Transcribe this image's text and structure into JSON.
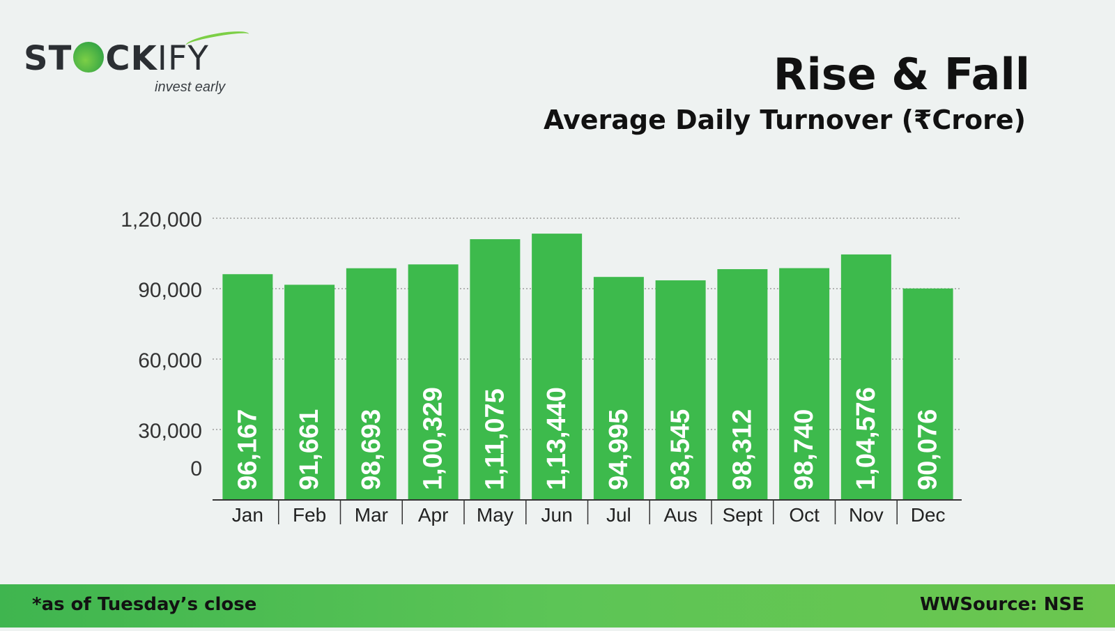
{
  "brand": {
    "name_part1": "ST",
    "name_part2": "CK",
    "name_part3": "IFY",
    "tagline": "invest early",
    "accent_color": "#7ccf46"
  },
  "header": {
    "title": "Rise & Fall",
    "subtitle": "Average Daily Turnover (₹Crore)"
  },
  "footer": {
    "note": "*as of Tuesday’s close",
    "source": "WWSource: NSE",
    "color": "#4cbc52"
  },
  "chart_data": {
    "type": "bar",
    "title": "Rise & Fall",
    "subtitle": "Average Daily Turnover (₹Crore)",
    "xlabel": "",
    "ylabel": "",
    "categories": [
      "Jan",
      "Feb",
      "Mar",
      "Apr",
      "May",
      "Jun",
      "Jul",
      "Aus",
      "Sept",
      "Oct",
      "Nov",
      "Dec"
    ],
    "values": [
      96167,
      91661,
      98693,
      100329,
      111075,
      113440,
      94995,
      93545,
      98312,
      98740,
      104576,
      90076
    ],
    "value_labels": [
      "96,167",
      "91,661",
      "98,693",
      "1,00,329",
      "1,11,075",
      "1,13,440",
      "94,995",
      "93,545",
      "98,312",
      "98,740",
      "1,04,576",
      "90,076"
    ],
    "y_ticks": [
      0,
      30000,
      60000,
      90000,
      120000
    ],
    "y_tick_labels": [
      "0",
      "30,000",
      "60,000",
      "90,000",
      "1,20,000"
    ],
    "ylim": [
      0,
      120000
    ],
    "grid": true,
    "legend": "none",
    "bar_color": "#3dba4c"
  }
}
